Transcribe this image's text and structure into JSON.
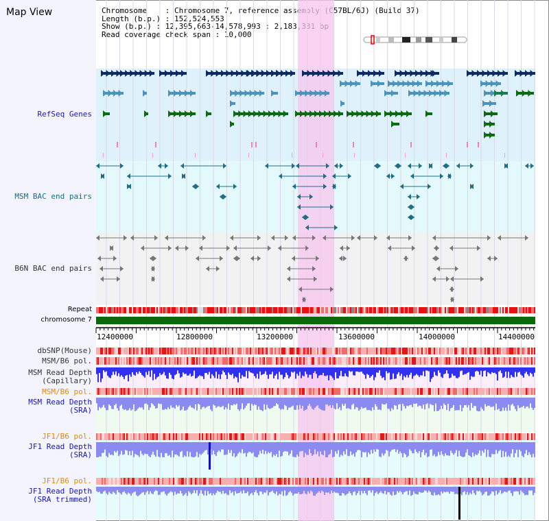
{
  "header": {
    "title": "Map View",
    "chromosome_line": "Chromosome    : Chromosome 7, reference assembly (C57BL/6J) (Build 37)",
    "length_line": "Length (b.p.) : 152,524,553",
    "show_line": "Show (b.p.) : 12,395,663-14,578,993 : 2,183,331 bp",
    "span_line": "Read coverage check span : 10,000"
  },
  "tracks": {
    "refseq": "RefSeq Genes",
    "msm_bac": "MSM BAC end pairs",
    "b6n_bac": "B6N BAC end pairs",
    "repeat": "Repeat",
    "chromosome": "chromosome 7",
    "dbsnp": "dbSNP(Mouse)",
    "msm_pol_1": "MSM/B6 pol.",
    "msm_depth_cap_1": "MSM Read Depth",
    "msm_depth_cap_2": "(Capillary)",
    "msm_pol_2": "MSM/B6 pol.",
    "msm_depth_sra_1": "MSM Read Depth",
    "msm_depth_sra_2": "(SRA)",
    "jf1_pol_1": "JF1/B6 pol.",
    "jf1_depth_sra_1": "JF1 Read Depth",
    "jf1_depth_sra_2": "(SRA)",
    "jf1_pol_2": "JF1/B6 pol.",
    "jf1_depth_trim_1": "JF1 Read Depth",
    "jf1_depth_trim_2": "(SRA trimmed)"
  },
  "ruler": {
    "ticks": [
      "12400000",
      "12800000",
      "13200000",
      "13600000",
      "14000000",
      "14400000"
    ]
  },
  "colors": {
    "highlight": "#f7c6ee",
    "refseq_bg": "#dff1fb",
    "navy": "#0b2a63",
    "steel": "#4c93bb",
    "green": "#0b6a10",
    "teal_line": "#1f6e86",
    "grey_line": "#777777",
    "chromosome": "#0a6a0a",
    "depth_blue": "#3030f0",
    "depth_lavender": "#8a8af0"
  }
}
